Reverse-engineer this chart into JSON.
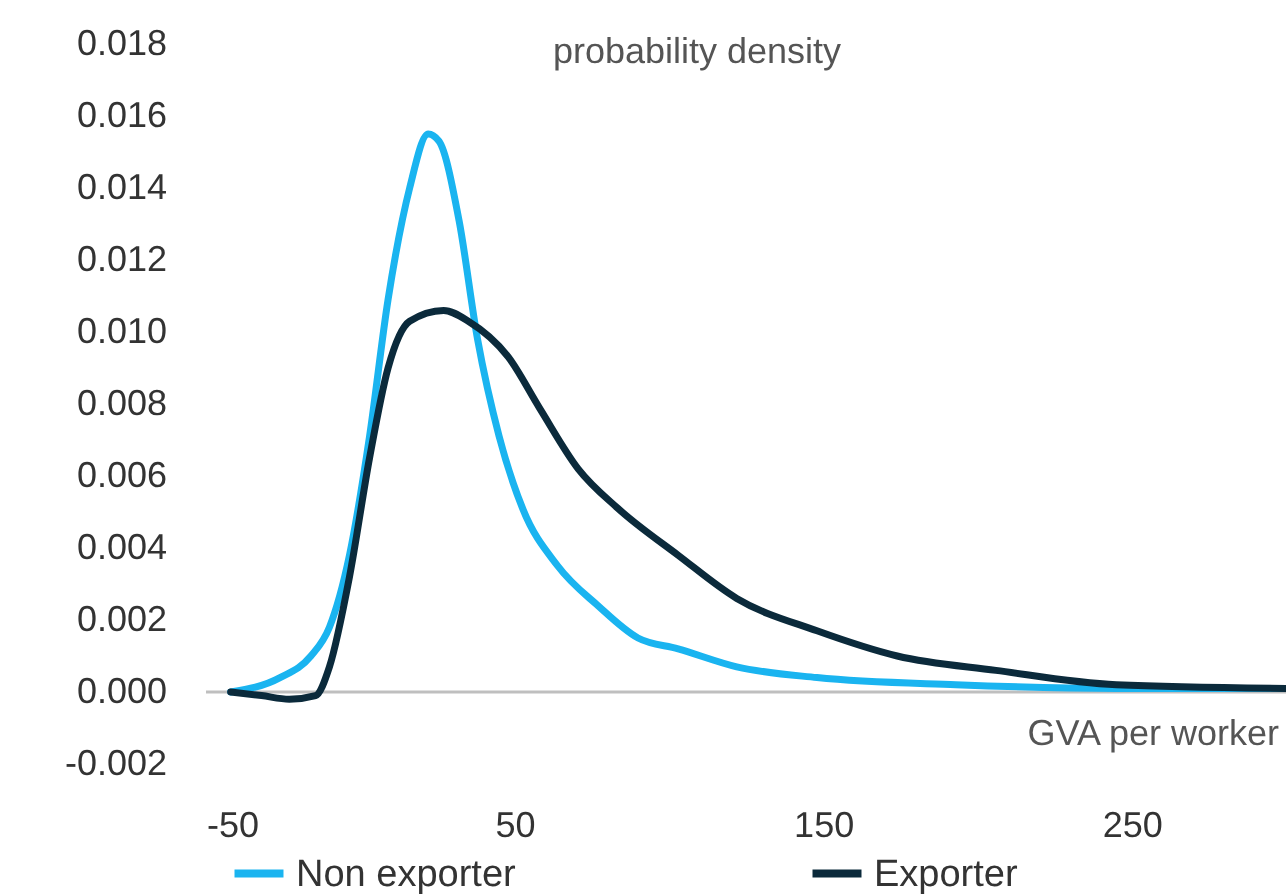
{
  "chart_data": {
    "type": "line",
    "ylabel": "probability density",
    "xlabel": "GVA per worker",
    "xlim": [
      -50,
      300
    ],
    "xticks": [
      -50,
      50,
      150,
      250
    ],
    "ylim": [
      -0.002,
      0.018
    ],
    "yticks": [
      -0.002,
      {
        "value": 0,
        "label": "0.000"
      },
      0.002,
      0.004,
      0.006,
      0.008,
      {
        "value": 0.01,
        "label": "0.010"
      },
      0.012,
      0.014,
      0.016,
      0.018
    ],
    "grid": false,
    "legend": "bottom",
    "ref_lines": [
      {
        "axis": "y",
        "value": 0,
        "color": "#bfbfbf"
      }
    ],
    "series": [
      {
        "name": "Non exporter",
        "color": "#1ab4f0",
        "x": [
          -42,
          -26,
          -16,
          -10,
          -3.5,
          3,
          9,
          16,
          22,
          25.5,
          32,
          38,
          45,
          52.6,
          64,
          77,
          90,
          103,
          122,
          148,
          193,
          245,
          300
        ],
        "values": [
          0,
          0.0004,
          0.001,
          0.0018,
          0.0038,
          0.0071,
          0.0109,
          0.014,
          0.0155,
          0.0153,
          0.0131,
          0.0098,
          0.0071,
          0.0051,
          0.0035,
          0.0024,
          0.0015,
          0.0012,
          0.0007,
          0.0004,
          0.0002,
          0.0001,
          0.0001
        ]
      },
      {
        "name": "Exporter",
        "color": "#0b2a3b",
        "x": [
          -42,
          -32,
          -23,
          -14.5,
          -10,
          -3.5,
          3,
          9,
          16,
          27,
          35,
          48,
          58,
          70.6,
          83.5,
          103,
          122,
          148,
          174,
          206,
          245,
          300
        ],
        "values": [
          0,
          -0.0001,
          -0.0002,
          -0.0001,
          0.0007,
          0.0032,
          0.0065,
          0.009,
          0.0103,
          0.0106,
          0.0103,
          0.0093,
          0.0079,
          0.0062,
          0.0051,
          0.0038,
          0.0026,
          0.0017,
          0.001,
          0.0006,
          0.0002,
          0.0001
        ]
      }
    ]
  }
}
